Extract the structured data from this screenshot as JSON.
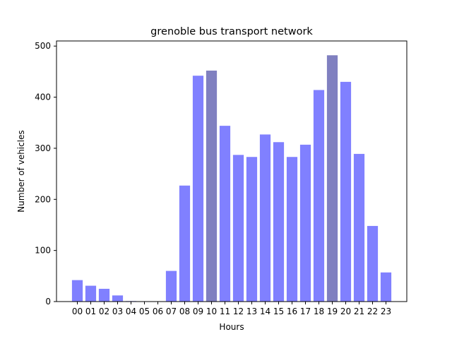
{
  "chart_data": {
    "type": "bar",
    "title": "grenoble bus transport network",
    "xlabel": "Hours",
    "ylabel": "Number of vehicles",
    "categories": [
      "00",
      "01",
      "02",
      "03",
      "04",
      "05",
      "06",
      "07",
      "08",
      "09",
      "10",
      "11",
      "12",
      "13",
      "14",
      "15",
      "16",
      "17",
      "18",
      "19",
      "20",
      "21",
      "22",
      "23"
    ],
    "values": [
      42,
      31,
      25,
      12,
      1,
      0,
      0,
      60,
      227,
      442,
      452,
      344,
      287,
      283,
      327,
      312,
      283,
      307,
      414,
      482,
      430,
      289,
      148,
      57
    ],
    "highlighted_categories": [
      "10",
      "19"
    ],
    "ylim": [
      0,
      510
    ],
    "yticks": [
      0,
      100,
      200,
      300,
      400,
      500
    ],
    "grid": false,
    "colors": {
      "bar": "#8080ff",
      "bar_highlight": "#8080c0",
      "axes": "#000000"
    }
  }
}
